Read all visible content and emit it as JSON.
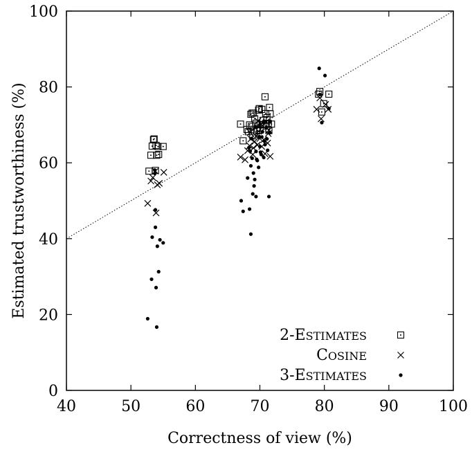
{
  "chart_data": {
    "type": "scatter",
    "title": "",
    "xlabel": "Correctness of view (%)",
    "ylabel": "Estimated trustworthiness (%)",
    "xlim": [
      40,
      100
    ],
    "ylim": [
      0,
      100
    ],
    "x_ticks": [
      40,
      50,
      60,
      70,
      80,
      90,
      100
    ],
    "y_ticks": [
      0,
      20,
      40,
      60,
      80,
      100
    ],
    "grid": false,
    "legend_position": "bottom-right",
    "reference_line": {
      "style": "dotted",
      "from": [
        40,
        40
      ],
      "to": [
        100,
        100
      ]
    },
    "series": [
      {
        "name": "2-Estimates",
        "marker": "square-dot",
        "points": [
          [
            52.8,
            57.8
          ],
          [
            53.1,
            62.0
          ],
          [
            53.3,
            64.4
          ],
          [
            53.5,
            66.1
          ],
          [
            53.6,
            66.3
          ],
          [
            53.9,
            64.6
          ],
          [
            54.0,
            62.0
          ],
          [
            54.3,
            62.2
          ],
          [
            54.2,
            64.3
          ],
          [
            55.0,
            64.3
          ],
          [
            53.8,
            58.0
          ],
          [
            67.0,
            70.2
          ],
          [
            67.4,
            65.8
          ],
          [
            68.0,
            68.8
          ],
          [
            68.4,
            70.0
          ],
          [
            68.6,
            72.8
          ],
          [
            68.8,
            73.1
          ],
          [
            69.0,
            73.1
          ],
          [
            69.2,
            71.6
          ],
          [
            69.4,
            70.4
          ],
          [
            69.6,
            69.1
          ],
          [
            69.8,
            73.9
          ],
          [
            69.9,
            74.3
          ],
          [
            70.1,
            70.1
          ],
          [
            70.3,
            74.1
          ],
          [
            70.5,
            71.2
          ],
          [
            70.8,
            77.4
          ],
          [
            70.9,
            73.0
          ],
          [
            71.1,
            71.9
          ],
          [
            71.3,
            70.4
          ],
          [
            71.5,
            74.6
          ],
          [
            71.6,
            72.9
          ],
          [
            71.8,
            70.2
          ],
          [
            68.2,
            68.2
          ],
          [
            68.9,
            67.1
          ],
          [
            69.5,
            68.4
          ],
          [
            70.0,
            68.6
          ],
          [
            70.6,
            70.1
          ],
          [
            71.0,
            69.7
          ],
          [
            71.4,
            68.5
          ],
          [
            68.7,
            69.6
          ],
          [
            79.1,
            78.1
          ],
          [
            79.3,
            78.8
          ],
          [
            79.6,
            73.4
          ],
          [
            79.9,
            75.6
          ],
          [
            80.7,
            78.1
          ]
        ]
      },
      {
        "name": "Cosine",
        "marker": "cross",
        "points": [
          [
            52.6,
            49.3
          ],
          [
            53.1,
            55.2
          ],
          [
            53.4,
            56.1
          ],
          [
            53.8,
            57.8
          ],
          [
            54.1,
            54.2
          ],
          [
            54.4,
            54.6
          ],
          [
            55.1,
            57.5
          ],
          [
            53.9,
            46.8
          ],
          [
            67.0,
            61.5
          ],
          [
            67.7,
            60.8
          ],
          [
            68.1,
            63.2
          ],
          [
            68.4,
            64.5
          ],
          [
            68.6,
            66.3
          ],
          [
            68.9,
            62.2
          ],
          [
            69.2,
            65.6
          ],
          [
            69.4,
            67.0
          ],
          [
            69.6,
            64.7
          ],
          [
            69.8,
            68.3
          ],
          [
            70.0,
            66.4
          ],
          [
            70.2,
            70.2
          ],
          [
            70.4,
            69.8
          ],
          [
            70.6,
            66.1
          ],
          [
            70.8,
            62.4
          ],
          [
            71.0,
            70.8
          ],
          [
            71.2,
            65.2
          ],
          [
            71.4,
            68.6
          ],
          [
            71.6,
            61.7
          ],
          [
            69.0,
            63.9
          ],
          [
            70.3,
            64.3
          ],
          [
            71.3,
            67.7
          ],
          [
            68.5,
            68.0
          ],
          [
            69.7,
            71.0
          ],
          [
            78.8,
            74.1
          ],
          [
            79.3,
            77.1
          ],
          [
            79.5,
            71.6
          ],
          [
            80.2,
            75.4
          ],
          [
            80.6,
            74.1
          ]
        ]
      },
      {
        "name": "3-Estimates",
        "marker": "dot",
        "points": [
          [
            52.6,
            18.9
          ],
          [
            53.2,
            29.3
          ],
          [
            53.3,
            40.4
          ],
          [
            53.7,
            58.1
          ],
          [
            53.8,
            47.6
          ],
          [
            53.8,
            43.0
          ],
          [
            53.9,
            27.1
          ],
          [
            54.0,
            16.7
          ],
          [
            54.1,
            38.0
          ],
          [
            54.3,
            31.3
          ],
          [
            54.5,
            39.7
          ],
          [
            55.0,
            38.9
          ],
          [
            53.7,
            57.2
          ],
          [
            67.1,
            50.0
          ],
          [
            67.4,
            47.2
          ],
          [
            68.1,
            56.0
          ],
          [
            68.4,
            47.8
          ],
          [
            68.6,
            41.2
          ],
          [
            68.6,
            59.2
          ],
          [
            68.8,
            61.2
          ],
          [
            68.9,
            51.8
          ],
          [
            69.0,
            57.3
          ],
          [
            69.1,
            53.9
          ],
          [
            69.2,
            55.6
          ],
          [
            69.4,
            51.1
          ],
          [
            69.4,
            63.0
          ],
          [
            69.6,
            60.6
          ],
          [
            69.8,
            58.8
          ],
          [
            70.0,
            64.3
          ],
          [
            70.2,
            62.2
          ],
          [
            70.3,
            66.8
          ],
          [
            70.4,
            68.2
          ],
          [
            70.6,
            61.4
          ],
          [
            70.8,
            64.8
          ],
          [
            71.0,
            69.2
          ],
          [
            71.2,
            63.3
          ],
          [
            71.4,
            51.1
          ],
          [
            71.5,
            67.9
          ],
          [
            68.3,
            64.0
          ],
          [
            68.7,
            66.4
          ],
          [
            69.3,
            69.4
          ],
          [
            69.9,
            66.9
          ],
          [
            70.5,
            70.7
          ],
          [
            71.1,
            66.3
          ],
          [
            68.5,
            63.1
          ],
          [
            69.5,
            60.9
          ],
          [
            70.1,
            62.8
          ],
          [
            70.7,
            65.7
          ],
          [
            71.6,
            70.8
          ],
          [
            70.0,
            70.0
          ],
          [
            79.2,
            84.9
          ],
          [
            79.6,
            70.6
          ],
          [
            80.1,
            83.0
          ],
          [
            80.7,
            74.3
          ],
          [
            79.3,
            78.0
          ]
        ]
      }
    ]
  },
  "legend": {
    "items": [
      {
        "prefix": "2-",
        "initial": "E",
        "rest": "STIMATES",
        "marker": "square-dot"
      },
      {
        "prefix": "",
        "initial": "C",
        "rest": "OSINE",
        "marker": "cross"
      },
      {
        "prefix": "3-",
        "initial": "E",
        "rest": "STIMATES",
        "marker": "dot"
      }
    ]
  }
}
